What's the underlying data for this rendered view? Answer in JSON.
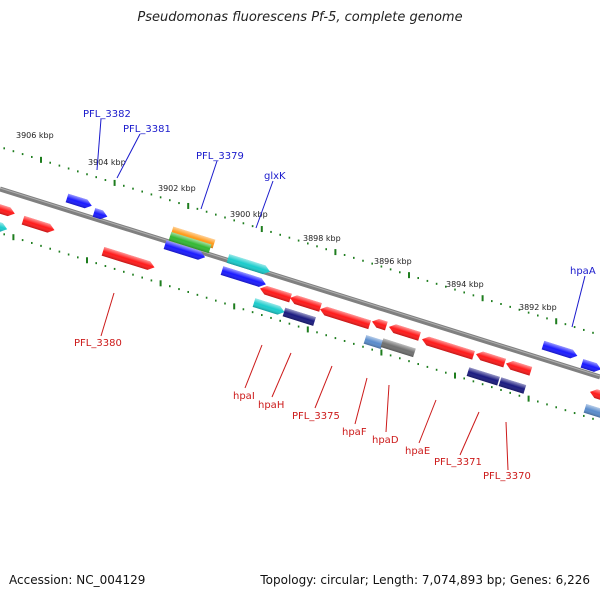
{
  "title": "Pseudomonas fluorescens Pf-5, complete genome",
  "footer": {
    "accession": "Accession: NC_004129",
    "summary": "Topology: circular; Length: 7,074,893 bp; Genes: 6,226"
  },
  "colors": {
    "backbone": "#808080",
    "tick": "#1e7d1e",
    "blue_label": "#1a1acc",
    "red_label": "#cc1a1a",
    "gene_red": "#ff1a1a",
    "gene_blue": "#1a1aff",
    "gene_cyan": "#1acccc",
    "gene_navy": "#1a1a80",
    "gene_steel": "#5a8ccc",
    "gene_gray": "#707070",
    "gene_orange": "#ff9a1a",
    "gene_green": "#33b833"
  },
  "scale_labels": [
    "3906 kbp",
    "3904 kbp",
    "3902 kbp",
    "3900 kbp",
    "3898 kbp",
    "3896 kbp",
    "3894 kbp",
    "3892 kbp"
  ],
  "upper_gene_labels": [
    "PFL_3382",
    "PFL_3381",
    "PFL_3379",
    "glxK",
    "hpaA"
  ],
  "lower_gene_labels": [
    "PFL_3380",
    "hpaI",
    "hpaH",
    "PFL_3375",
    "hpaF",
    "hpaD",
    "hpaE",
    "PFL_3371",
    "PFL_3370"
  ]
}
